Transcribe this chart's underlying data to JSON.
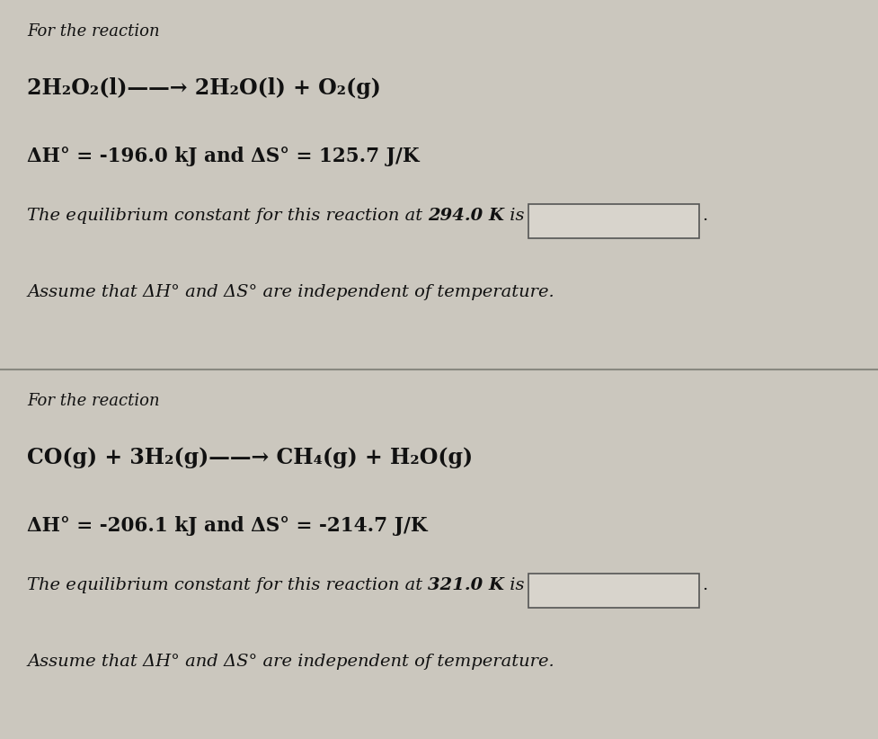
{
  "bg_color_top": "#cbc7be",
  "bg_color_bottom": "#bab6ae",
  "text_color": "#111111",
  "box_facecolor": "#d8d4cc",
  "box_edgecolor": "#555555",
  "panel1": {
    "line1": "For the reaction",
    "line2": "2H₂O₂(l)——→ 2H₂O(l) + O₂(g)",
    "line3": "ΔH° = -196.0 kJ and ΔS° = 125.7 J/K",
    "equil_prefix": "The equilibrium constant for this reaction at ",
    "equil_temp": "294.0 K",
    "equil_suffix": " is",
    "assume": "Assume that ΔH° and ΔS° are independent of temperature."
  },
  "panel2": {
    "line1": "For the reaction",
    "line2": "CO(g) + 3H₂(g)——→ CH₄(g) + H₂O(g)",
    "line3": "ΔH° = -206.1 kJ and ΔS° = -214.7 J/K",
    "equil_prefix": "The equilibrium constant for this reaction at ",
    "equil_temp": "321.0 K",
    "equil_suffix": " is",
    "assume": "Assume that ΔH° and ΔS° are independent of temperature."
  }
}
